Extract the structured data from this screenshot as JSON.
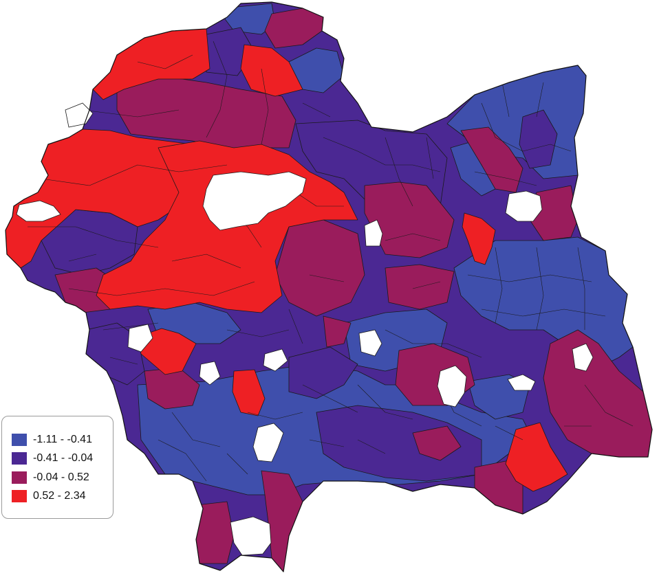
{
  "map": {
    "classes": [
      {
        "label": "-1.11 - -0.41",
        "color": "#3f4fac"
      },
      {
        "label": "-0.41 - -0.04",
        "color": "#4b2893"
      },
      {
        "label": "-0.04 - 0.52",
        "color": "#9a1c5c"
      },
      {
        "label": "0.52 - 2.34",
        "color": "#ee2024"
      }
    ],
    "no_data_color": "#ffffff"
  }
}
